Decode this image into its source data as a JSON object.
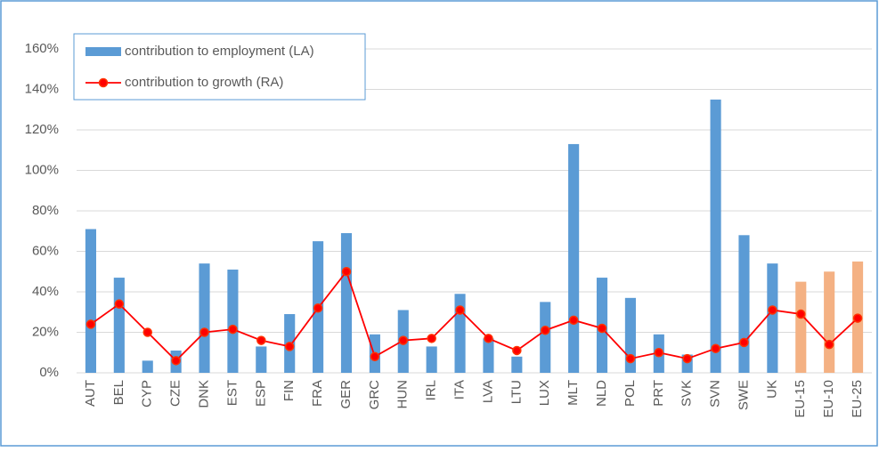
{
  "chart_data": {
    "type": "bar_line",
    "categories": [
      "AUT",
      "BEL",
      "CYP",
      "CZE",
      "DNK",
      "EST",
      "ESP",
      "FIN",
      "FRA",
      "GER",
      "GRC",
      "HUN",
      "IRL",
      "ITA",
      "LVA",
      "LTU",
      "LUX",
      "MLT",
      "NLD",
      "POL",
      "PRT",
      "SVK",
      "SVN",
      "SWE",
      "UK",
      "EU-15",
      "EU-10",
      "EU-25"
    ],
    "series": [
      {
        "name": "contribution to employment (LA)",
        "type": "bar",
        "color": "#5b9bd5",
        "colors": [
          "#5b9bd5",
          "#5b9bd5",
          "#5b9bd5",
          "#5b9bd5",
          "#5b9bd5",
          "#5b9bd5",
          "#5b9bd5",
          "#5b9bd5",
          "#5b9bd5",
          "#5b9bd5",
          "#5b9bd5",
          "#5b9bd5",
          "#5b9bd5",
          "#5b9bd5",
          "#5b9bd5",
          "#5b9bd5",
          "#5b9bd5",
          "#5b9bd5",
          "#5b9bd5",
          "#5b9bd5",
          "#5b9bd5",
          "#5b9bd5",
          "#5b9bd5",
          "#5b9bd5",
          "#5b9bd5",
          "#f4b183",
          "#f4b183",
          "#f4b183"
        ],
        "values": [
          71,
          47,
          6,
          11,
          54,
          51,
          13,
          29,
          65,
          69,
          19,
          31,
          13,
          39,
          17,
          8,
          35,
          113,
          47,
          37,
          19,
          9,
          135,
          68,
          54,
          45,
          50,
          55
        ]
      },
      {
        "name": "contribution to growth (RA)",
        "type": "line",
        "color": "#ff0000",
        "values": [
          24,
          34,
          20,
          6,
          20,
          21.5,
          16,
          13,
          32,
          50,
          8,
          16,
          17,
          31,
          17,
          11,
          21,
          26,
          22,
          7,
          10,
          7,
          12,
          15,
          31,
          29,
          14,
          27
        ]
      }
    ],
    "ylim": [
      0,
      160
    ],
    "yticks": [
      {
        "value": 0,
        "label": "0%"
      },
      {
        "value": 20,
        "label": "20%"
      },
      {
        "value": 40,
        "label": "40%"
      },
      {
        "value": 60,
        "label": "60%"
      },
      {
        "value": 80,
        "label": "80%"
      },
      {
        "value": 100,
        "label": "100%"
      },
      {
        "value": 120,
        "label": "120%"
      },
      {
        "value": 140,
        "label": "140%"
      },
      {
        "value": 160,
        "label": "160%"
      }
    ],
    "grid": true,
    "legend": "top-left"
  }
}
